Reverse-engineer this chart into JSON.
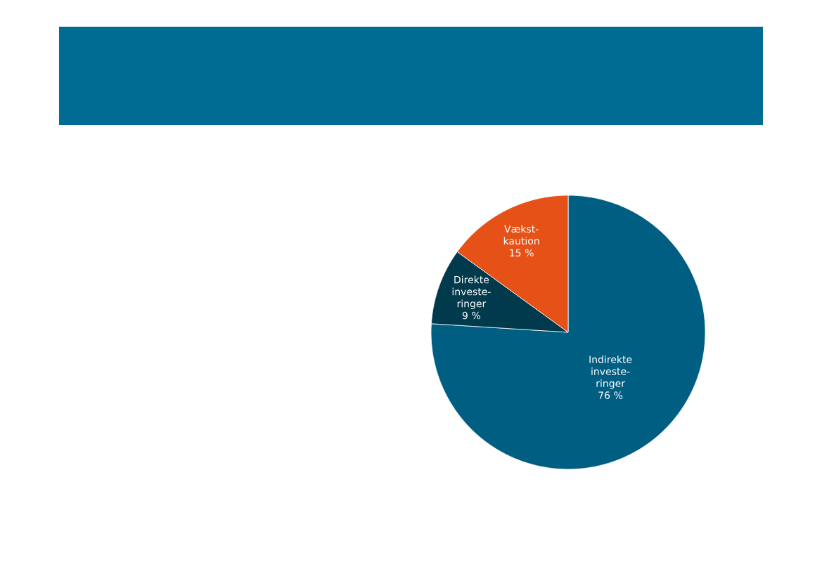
{
  "chart_data": {
    "type": "pie",
    "categories": [
      "Indirekte investe-ringer",
      "Direkte investe-ringer",
      "Vækst-kaution"
    ],
    "values": [
      76,
      9,
      15
    ],
    "value_labels": [
      "76 %",
      "9 %",
      "15 %"
    ],
    "colors": [
      "#005e82",
      "#003a4c",
      "#e55116"
    ]
  }
}
